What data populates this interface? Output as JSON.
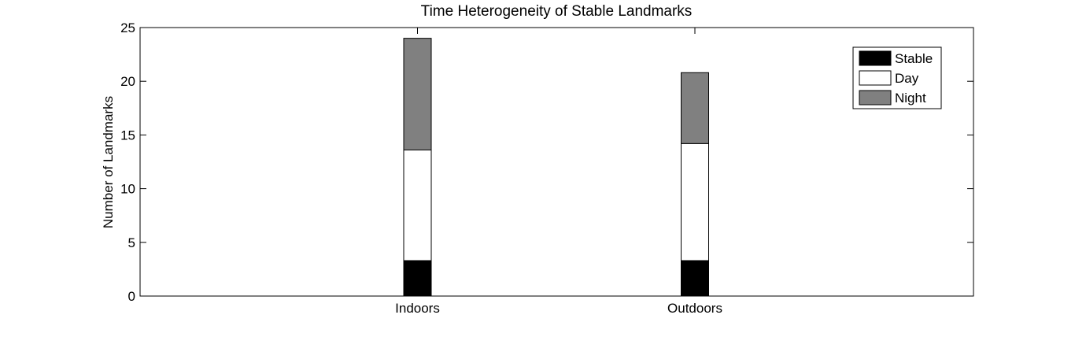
{
  "chart_data": {
    "type": "bar",
    "stacked": true,
    "title": "Time Heterogeneity of Stable Landmarks",
    "xlabel": "",
    "ylabel": "Number of Landmarks",
    "categories": [
      "Indoors",
      "Outdoors"
    ],
    "series": [
      {
        "name": "Stable",
        "color": "#000000",
        "values": [
          3.3,
          3.3
        ]
      },
      {
        "name": "Day",
        "color": "#ffffff",
        "values": [
          10.3,
          10.9
        ]
      },
      {
        "name": "Night",
        "color": "#808080",
        "values": [
          10.4,
          6.6
        ]
      }
    ],
    "ylim": [
      0,
      25
    ],
    "yticks": [
      0,
      5,
      10,
      15,
      20,
      25
    ],
    "grid": false,
    "legend_position": "top-right"
  }
}
